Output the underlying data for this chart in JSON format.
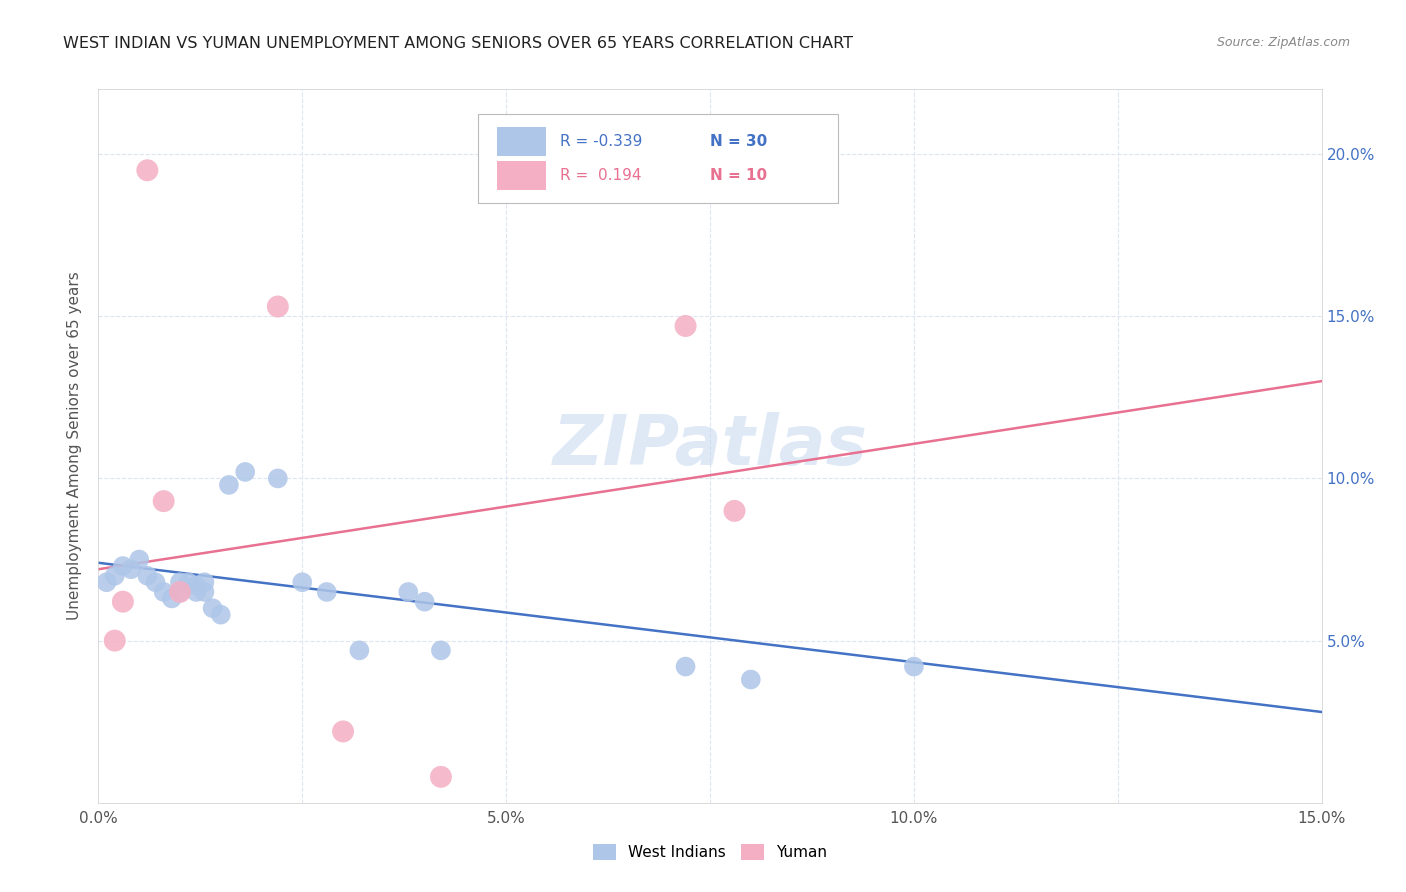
{
  "title": "WEST INDIAN VS YUMAN UNEMPLOYMENT AMONG SENIORS OVER 65 YEARS CORRELATION CHART",
  "source": "Source: ZipAtlas.com",
  "ylabel": "Unemployment Among Seniors over 65 years",
  "xlim": [
    0.0,
    0.15
  ],
  "ylim": [
    0.0,
    0.22
  ],
  "xticks": [
    0.0,
    0.025,
    0.05,
    0.075,
    0.1,
    0.125,
    0.15
  ],
  "xtick_labels": [
    "0.0%",
    "",
    "5.0%",
    "",
    "10.0%",
    "",
    "15.0%"
  ],
  "yticks": [
    0.05,
    0.1,
    0.15,
    0.2
  ],
  "ytick_labels": [
    "5.0%",
    "10.0%",
    "15.0%",
    "20.0%"
  ],
  "watermark": "ZIPatlas",
  "west_indians_color": "#aec6e8",
  "yuman_color": "#f4afc4",
  "west_indians_line_color": "#4472c4",
  "yuman_line_color": "#e87090",
  "legend_r_west": "-0.339",
  "legend_n_west": "30",
  "legend_r_yuman": "0.194",
  "legend_n_yuman": "10",
  "west_indians_x": [
    0.001,
    0.002,
    0.003,
    0.004,
    0.005,
    0.006,
    0.007,
    0.008,
    0.009,
    0.01,
    0.01,
    0.011,
    0.012,
    0.012,
    0.013,
    0.013,
    0.014,
    0.015,
    0.016,
    0.018,
    0.022,
    0.025,
    0.028,
    0.032,
    0.038,
    0.04,
    0.042,
    0.072,
    0.08,
    0.1
  ],
  "west_indians_y": [
    0.068,
    0.07,
    0.073,
    0.072,
    0.075,
    0.07,
    0.068,
    0.065,
    0.063,
    0.068,
    0.065,
    0.068,
    0.067,
    0.065,
    0.065,
    0.068,
    0.06,
    0.058,
    0.098,
    0.102,
    0.1,
    0.068,
    0.065,
    0.047,
    0.065,
    0.062,
    0.047,
    0.042,
    0.038,
    0.042
  ],
  "yuman_x": [
    0.002,
    0.003,
    0.006,
    0.008,
    0.01,
    0.022,
    0.03,
    0.042,
    0.072,
    0.078
  ],
  "yuman_y": [
    0.05,
    0.062,
    0.195,
    0.093,
    0.065,
    0.153,
    0.022,
    0.008,
    0.147,
    0.09
  ],
  "west_indians_line_x0": 0.0,
  "west_indians_line_y0": 0.074,
  "west_indians_line_x1": 0.15,
  "west_indians_line_y1": 0.028,
  "yuman_line_x0": 0.0,
  "yuman_line_y0": 0.072,
  "yuman_line_x1": 0.15,
  "yuman_line_y1": 0.13,
  "dot_size_west": 200,
  "dot_size_yuman": 250,
  "background_color": "#ffffff",
  "grid_color": "#dce6f0",
  "title_color": "#222222",
  "source_color": "#888888",
  "axis_label_color": "#555555",
  "right_tick_color": "#4472c4",
  "left_tick_color": "#888888"
}
